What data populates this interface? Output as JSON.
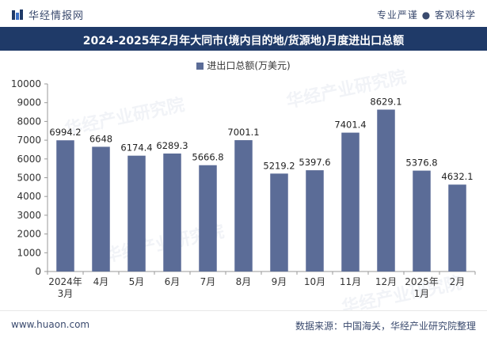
{
  "header": {
    "brand": "华经情报网",
    "tagline": "专业严谨 ● 客观科学",
    "logo_icon": "brand-logo-icon"
  },
  "watermark": "华经产业研究院",
  "footer": {
    "site": "www.huaon.com",
    "source": "数据来源：中国海关，华经产业研究院整理"
  },
  "colors": {
    "bar": "#5b6c97",
    "title_bg": "#1f3a68",
    "axis": "#333333"
  },
  "chart_data": {
    "type": "bar",
    "title": "2024-2025年2月年大同市(境内目的地/货源地)月度进出口总额",
    "legend": [
      "进出口总额(万美元)"
    ],
    "categories": [
      "2024年\n3月",
      "4月",
      "5月",
      "6月",
      "7月",
      "8月",
      "9月",
      "10月",
      "11月",
      "12月",
      "2025年\n1月",
      "2月"
    ],
    "values": [
      6994.2,
      6648,
      6174.4,
      6289.3,
      5666.8,
      7001.1,
      5219.2,
      5397.6,
      7401.4,
      8629.1,
      5376.8,
      4632.1
    ],
    "value_labels": [
      "6994.2",
      "6648",
      "6174.4",
      "6289.3",
      "5666.8",
      "7001.1",
      "5219.2",
      "5397.6",
      "7401.4",
      "8629.1",
      "5376.8",
      "4632.1"
    ],
    "ylim": [
      0,
      10000
    ],
    "yticks": [
      0,
      1000,
      2000,
      3000,
      4000,
      5000,
      6000,
      7000,
      8000,
      9000,
      10000
    ],
    "xlabel": "",
    "ylabel": ""
  }
}
